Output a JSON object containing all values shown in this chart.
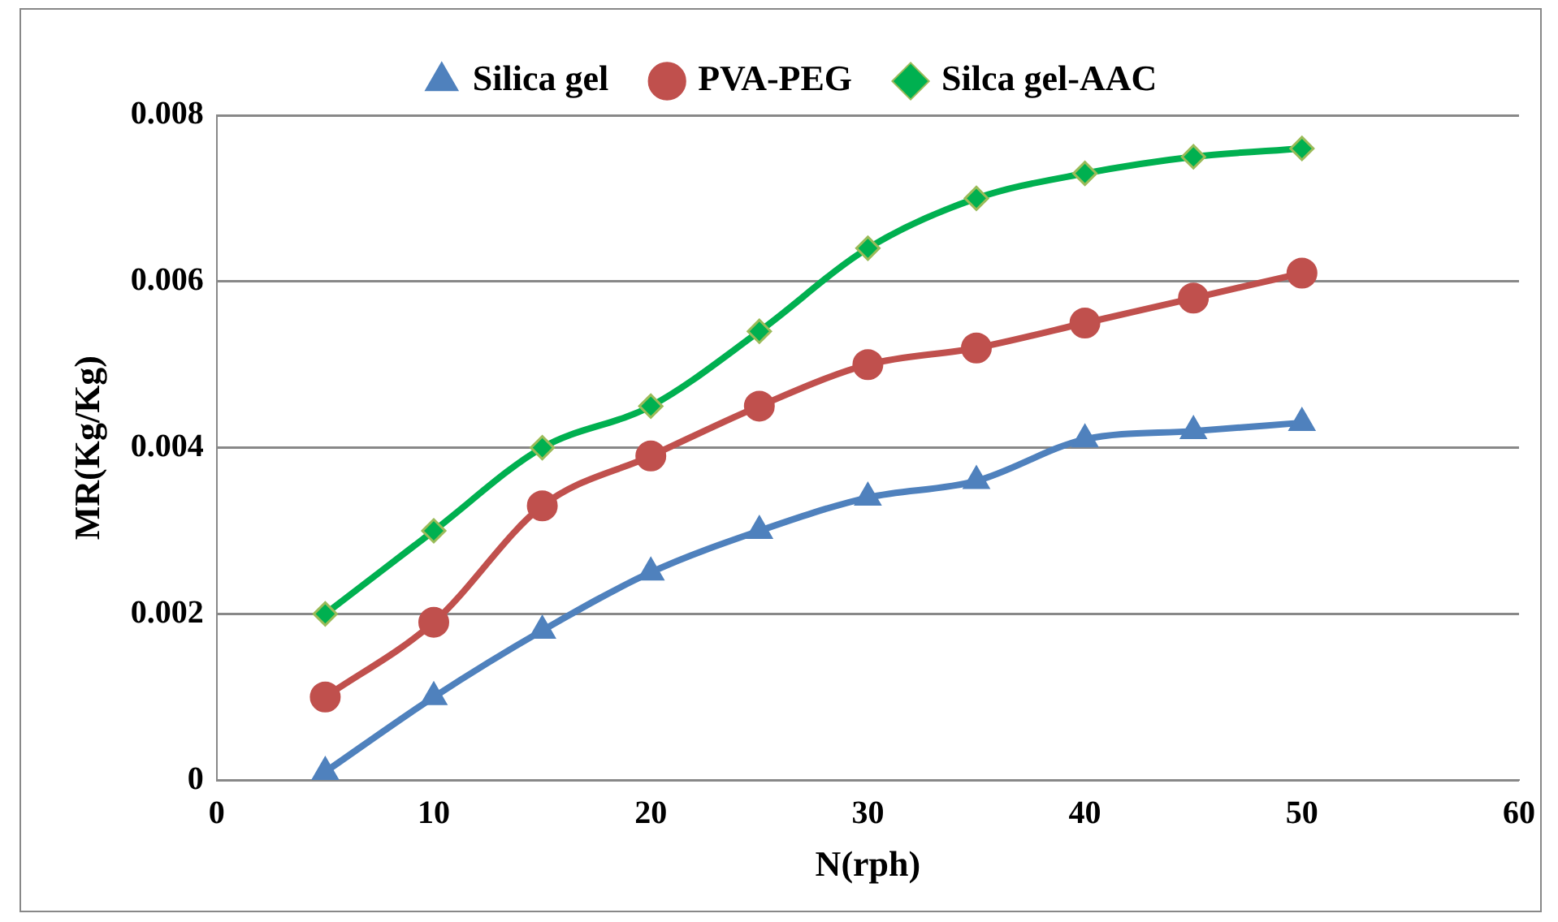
{
  "chart_data": {
    "type": "line",
    "xlabel": "N(rph)",
    "ylabel": "MR(Kg/Kg)",
    "x": [
      5,
      10,
      15,
      20,
      25,
      30,
      35,
      40,
      45,
      50
    ],
    "series": [
      {
        "name": "Silica gel",
        "color": "#4f81bd",
        "marker": "triangle",
        "values": [
          0.0001,
          0.001,
          0.0018,
          0.0025,
          0.003,
          0.0034,
          0.0036,
          0.0041,
          0.0042,
          0.0043
        ]
      },
      {
        "name": "PVA-PEG",
        "color": "#c0504d",
        "marker": "circle",
        "values": [
          0.001,
          0.0019,
          0.0033,
          0.0039,
          0.0045,
          0.005,
          0.0052,
          0.0055,
          0.0058,
          0.0061
        ]
      },
      {
        "name": "Silca gel-AAC",
        "color": "#00b050",
        "marker": "diamond",
        "values": [
          0.002,
          0.003,
          0.004,
          0.0045,
          0.0054,
          0.0064,
          0.007,
          0.0073,
          0.0075,
          0.0076
        ]
      }
    ],
    "xlim": [
      0,
      60
    ],
    "xticks": [
      0,
      10,
      20,
      30,
      40,
      50,
      60
    ],
    "ylim": [
      0,
      0.008
    ],
    "yticks": [
      0,
      0.002,
      0.004,
      0.006,
      0.008
    ],
    "grid": "y",
    "legend": "top",
    "line_style": "solid"
  }
}
